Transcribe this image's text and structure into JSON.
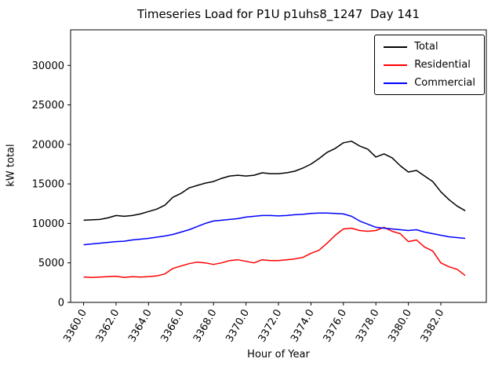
{
  "chart_data": {
    "type": "line",
    "title": "Timeseries Load for P1U p1uhs8_1247  Day 141",
    "xlabel": "Hour of Year",
    "ylabel": "kW total",
    "grid": false,
    "legend_position": "upper right",
    "xlim": [
      3359.2,
      3384.8
    ],
    "ylim": [
      0,
      34500
    ],
    "xticks": [
      3360,
      3362,
      3364,
      3366,
      3368,
      3370,
      3372,
      3374,
      3376,
      3378,
      3380,
      3382
    ],
    "xtick_labels": [
      "3360.0",
      "3362.0",
      "3364.0",
      "3366.0",
      "3368.0",
      "3370.0",
      "3372.0",
      "3374.0",
      "3376.0",
      "3378.0",
      "3380.0",
      "3382.0"
    ],
    "yticks": [
      0,
      5000,
      10000,
      15000,
      20000,
      25000,
      30000
    ],
    "x": [
      3360.0,
      3360.5,
      3361.0,
      3361.5,
      3362.0,
      3362.5,
      3363.0,
      3363.5,
      3364.0,
      3364.5,
      3365.0,
      3365.5,
      3366.0,
      3366.5,
      3367.0,
      3367.5,
      3368.0,
      3368.5,
      3369.0,
      3369.5,
      3370.0,
      3370.5,
      3371.0,
      3371.5,
      3372.0,
      3372.5,
      3373.0,
      3373.5,
      3374.0,
      3374.5,
      3375.0,
      3375.5,
      3376.0,
      3376.5,
      3377.0,
      3377.5,
      3378.0,
      3378.5,
      3379.0,
      3379.5,
      3380.0,
      3380.5,
      3381.0,
      3381.5,
      3382.0,
      3382.5,
      3383.0,
      3383.5
    ],
    "series": [
      {
        "name": "Total",
        "color": "#000000",
        "values": [
          10400,
          10450,
          10500,
          10700,
          11000,
          10900,
          11000,
          11200,
          11500,
          11800,
          12300,
          13300,
          13800,
          14500,
          14800,
          15100,
          15300,
          15700,
          16000,
          16100,
          16000,
          16100,
          16400,
          16300,
          16300,
          16400,
          16600,
          17000,
          17500,
          18200,
          19000,
          19500,
          20200,
          20400,
          19800,
          19400,
          18400,
          18800,
          18300,
          17300,
          16500,
          16700,
          16000,
          15300,
          14000,
          13000,
          12200,
          11600
        ]
      },
      {
        "name": "Residential",
        "color": "#ff0000",
        "values": [
          3200,
          3150,
          3200,
          3250,
          3300,
          3150,
          3250,
          3200,
          3250,
          3350,
          3600,
          4300,
          4600,
          4900,
          5100,
          5000,
          4800,
          5000,
          5300,
          5400,
          5200,
          5000,
          5400,
          5300,
          5300,
          5400,
          5500,
          5700,
          6200,
          6600,
          7500,
          8500,
          9300,
          9400,
          9100,
          9000,
          9100,
          9500,
          9000,
          8700,
          7700,
          7900,
          7000,
          6500,
          5000,
          4500,
          4200,
          3400
        ]
      },
      {
        "name": "Commercial",
        "color": "#0000ff",
        "values": [
          7300,
          7400,
          7500,
          7600,
          7700,
          7750,
          7900,
          8000,
          8100,
          8250,
          8400,
          8600,
          8900,
          9200,
          9600,
          10000,
          10300,
          10400,
          10500,
          10600,
          10800,
          10900,
          11000,
          11000,
          10950,
          11000,
          11100,
          11150,
          11250,
          11300,
          11300,
          11250,
          11200,
          10900,
          10300,
          9900,
          9500,
          9400,
          9300,
          9200,
          9100,
          9200,
          8900,
          8700,
          8500,
          8300,
          8200,
          8100
        ]
      }
    ]
  }
}
